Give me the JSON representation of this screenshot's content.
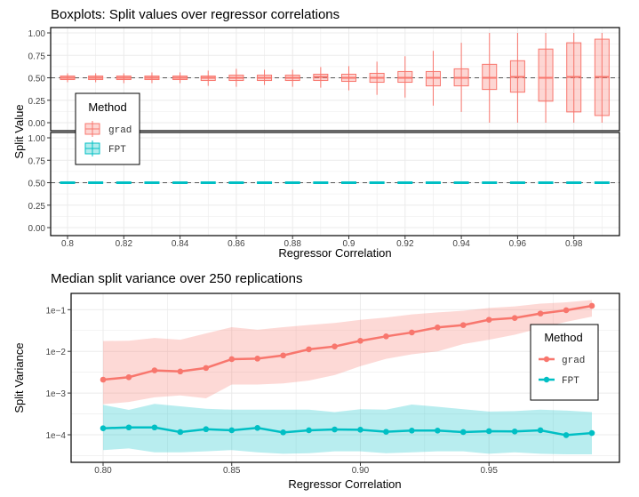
{
  "colors": {
    "grad": "#F8766D",
    "FPT": "#00BFC4",
    "reference_line": "#555555"
  },
  "chart_data": [
    {
      "type": "boxplot",
      "title": "Boxplots: Split values over regressor correlations",
      "xlabel": "Regressor Correlation",
      "ylabel": "Split Value",
      "facets": [
        "grad",
        "FPT"
      ],
      "ylim": [
        0,
        1
      ],
      "yticks": [
        "0.00",
        "0.25",
        "0.50",
        "0.75",
        "1.00"
      ],
      "xticks": [
        "0.8",
        "0.82",
        "0.84",
        "0.86",
        "0.88",
        "0.9",
        "0.92",
        "0.94",
        "0.96",
        "0.98"
      ],
      "reference_line": 0.5,
      "grid": true,
      "legend": {
        "title": "Method",
        "entries": [
          "grad",
          "FPT"
        ],
        "placement": "left-inside"
      },
      "x": [
        0.8,
        0.81,
        0.82,
        0.83,
        0.84,
        0.85,
        0.86,
        0.87,
        0.88,
        0.89,
        0.9,
        0.91,
        0.92,
        0.93,
        0.94,
        0.95,
        0.96,
        0.97,
        0.98,
        0.99
      ],
      "series": [
        {
          "name": "grad",
          "whisker_low": [
            0.45,
            0.45,
            0.44,
            0.44,
            0.44,
            0.41,
            0.4,
            0.42,
            0.4,
            0.39,
            0.36,
            0.31,
            0.28,
            0.19,
            0.12,
            0.0,
            0.0,
            0.0,
            0.0,
            0.0
          ],
          "q1": [
            0.48,
            0.48,
            0.48,
            0.48,
            0.48,
            0.47,
            0.47,
            0.47,
            0.47,
            0.47,
            0.46,
            0.45,
            0.45,
            0.41,
            0.41,
            0.37,
            0.34,
            0.24,
            0.12,
            0.08
          ],
          "median": [
            0.5,
            0.5,
            0.5,
            0.5,
            0.5,
            0.5,
            0.5,
            0.5,
            0.5,
            0.51,
            0.5,
            0.5,
            0.5,
            0.5,
            0.5,
            0.5,
            0.51,
            0.5,
            0.51,
            0.51
          ],
          "q3": [
            0.52,
            0.52,
            0.52,
            0.52,
            0.52,
            0.52,
            0.53,
            0.53,
            0.53,
            0.54,
            0.54,
            0.55,
            0.57,
            0.57,
            0.6,
            0.65,
            0.69,
            0.82,
            0.89,
            0.93
          ],
          "whisker_high": [
            0.55,
            0.55,
            0.55,
            0.56,
            0.56,
            0.58,
            0.6,
            0.59,
            0.59,
            0.62,
            0.63,
            0.68,
            0.74,
            0.8,
            0.89,
            1.0,
            1.0,
            1.0,
            1.0,
            1.0
          ]
        },
        {
          "name": "FPT",
          "whisker_low": [
            0.5,
            0.5,
            0.5,
            0.5,
            0.5,
            0.5,
            0.5,
            0.5,
            0.5,
            0.5,
            0.5,
            0.5,
            0.5,
            0.5,
            0.5,
            0.5,
            0.5,
            0.5,
            0.5,
            0.5
          ],
          "q1": [
            0.5,
            0.5,
            0.5,
            0.5,
            0.5,
            0.5,
            0.5,
            0.5,
            0.5,
            0.5,
            0.5,
            0.5,
            0.5,
            0.5,
            0.5,
            0.5,
            0.5,
            0.5,
            0.5,
            0.5
          ],
          "median": [
            0.5,
            0.5,
            0.5,
            0.5,
            0.5,
            0.5,
            0.5,
            0.5,
            0.5,
            0.5,
            0.5,
            0.5,
            0.5,
            0.5,
            0.5,
            0.5,
            0.5,
            0.5,
            0.5,
            0.5
          ],
          "q3": [
            0.5,
            0.5,
            0.5,
            0.5,
            0.5,
            0.5,
            0.5,
            0.5,
            0.5,
            0.5,
            0.5,
            0.5,
            0.5,
            0.5,
            0.5,
            0.5,
            0.5,
            0.5,
            0.5,
            0.5
          ],
          "whisker_high": [
            0.5,
            0.5,
            0.5,
            0.5,
            0.5,
            0.5,
            0.5,
            0.5,
            0.5,
            0.5,
            0.5,
            0.5,
            0.5,
            0.5,
            0.5,
            0.5,
            0.5,
            0.5,
            0.5,
            0.5
          ]
        }
      ]
    },
    {
      "type": "line",
      "title": "Median split variance over 250 replications",
      "xlabel": "Regressor Correlation",
      "ylabel": "Split Variance",
      "yscale": "log",
      "ylim": [
        3e-05,
        0.2
      ],
      "yticks": [
        "1e−4",
        "1e−3",
        "1e−2",
        "1e−1"
      ],
      "ytick_values": [
        0.0001,
        0.001,
        0.01,
        0.1
      ],
      "xticks": [
        "0.80",
        "0.85",
        "0.90",
        "0.95"
      ],
      "xtick_values": [
        0.8,
        0.85,
        0.9,
        0.95
      ],
      "grid": true,
      "legend": {
        "title": "Method",
        "entries": [
          "grad",
          "FPT"
        ],
        "placement": "right"
      },
      "x": [
        0.8,
        0.81,
        0.82,
        0.83,
        0.84,
        0.85,
        0.86,
        0.87,
        0.88,
        0.89,
        0.9,
        0.91,
        0.92,
        0.93,
        0.94,
        0.95,
        0.96,
        0.97,
        0.98,
        0.99
      ],
      "series": [
        {
          "name": "grad",
          "median": [
            0.0021,
            0.0024,
            0.0035,
            0.0033,
            0.004,
            0.0065,
            0.0067,
            0.008,
            0.0112,
            0.0131,
            0.0179,
            0.0229,
            0.0284,
            0.0375,
            0.0427,
            0.0573,
            0.0632,
            0.0809,
            0.0968,
            0.1236
          ],
          "band_low": [
            0.00054,
            0.00061,
            0.00079,
            0.00088,
            0.00075,
            0.0016,
            0.0016,
            0.0017,
            0.002,
            0.0027,
            0.0044,
            0.0066,
            0.0085,
            0.01,
            0.015,
            0.019,
            0.025,
            0.036,
            0.051,
            0.068
          ],
          "band_high": [
            0.0177,
            0.018,
            0.021,
            0.019,
            0.027,
            0.038,
            0.033,
            0.038,
            0.043,
            0.048,
            0.057,
            0.065,
            0.077,
            0.086,
            0.094,
            0.11,
            0.12,
            0.14,
            0.15,
            0.17
          ]
        },
        {
          "name": "FPT",
          "median": [
            0.000143,
            0.00015,
            0.00015,
            0.000116,
            0.000136,
            0.000128,
            0.000146,
            0.000114,
            0.000128,
            0.000134,
            0.000132,
            0.000118,
            0.000126,
            0.000126,
            0.000116,
            0.000122,
            0.00012,
            0.000128,
            9.8e-05,
            0.00011
          ],
          "band_low": [
            4.3e-05,
            4.7e-05,
            3.8e-05,
            3.8e-05,
            4e-05,
            4.3e-05,
            3.8e-05,
            3.5e-05,
            3.6e-05,
            4e-05,
            4e-05,
            3.6e-05,
            3.8e-05,
            4e-05,
            4e-05,
            3.5e-05,
            3.8e-05,
            3.5e-05,
            3.4e-05,
            3.4e-05
          ],
          "band_high": [
            0.00052,
            0.000396,
            0.00055,
            0.00048,
            0.00042,
            0.0004,
            0.0004,
            0.0004,
            0.0004,
            0.00035,
            0.00041,
            0.0004,
            0.00053,
            0.00047,
            0.00041,
            0.00036,
            0.00037,
            0.0004,
            0.00038,
            0.00035
          ]
        }
      ]
    }
  ]
}
